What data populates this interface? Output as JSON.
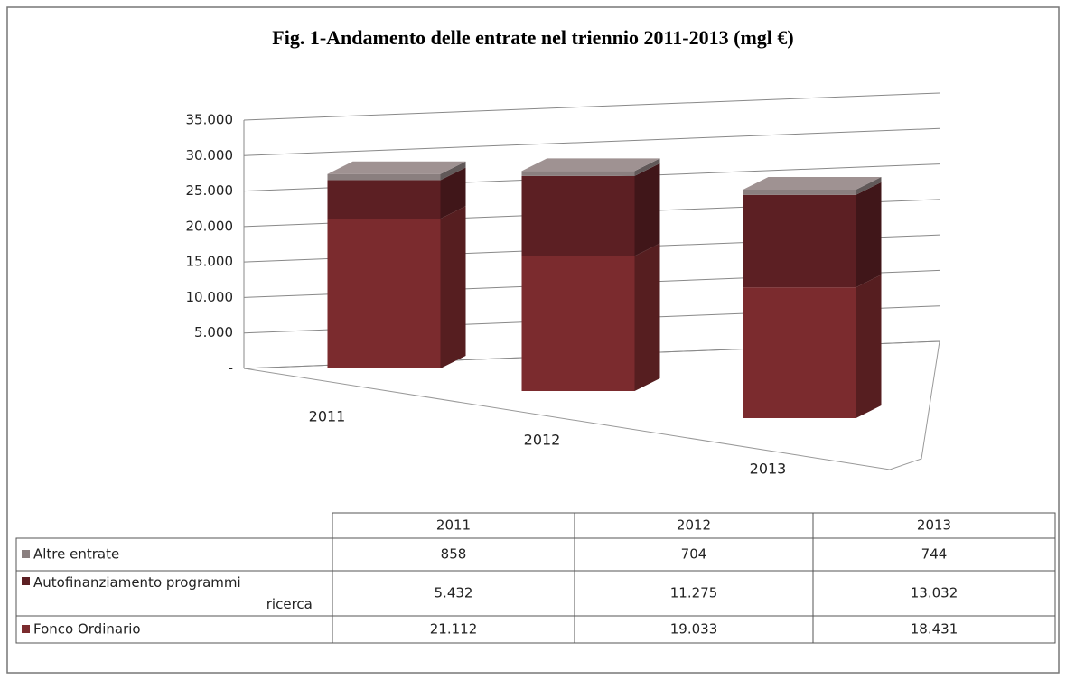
{
  "chart_data": {
    "type": "bar3d_stacked",
    "title": "Fig. 1-Andamento delle entrate nel triennio 2011-2013 (mgl €)",
    "categories": [
      "2011",
      "2012",
      "2013"
    ],
    "series": [
      {
        "name": "Fonco Ordinario",
        "color": "#7b2b2e",
        "values": [
          21112,
          19033,
          18431
        ],
        "value_labels": [
          "21.112",
          "19.033",
          "18.431"
        ]
      },
      {
        "name": "Autofinanziamento programmi ricerca",
        "color": "#5c1f23",
        "values": [
          5432,
          11275,
          13032
        ],
        "value_labels": [
          "5.432",
          "11.275",
          "13.032"
        ]
      },
      {
        "name": "Altre entrate",
        "color": "#8a7f7f",
        "values": [
          858,
          704,
          744
        ],
        "value_labels": [
          "858",
          "704",
          "744"
        ]
      }
    ],
    "ylim": [
      0,
      35000
    ],
    "yticks": [
      {
        "value": 0,
        "label": "-"
      },
      {
        "value": 5000,
        "label": "5.000"
      },
      {
        "value": 10000,
        "label": "10.000"
      },
      {
        "value": 15000,
        "label": "15.000"
      },
      {
        "value": 20000,
        "label": "20.000"
      },
      {
        "value": 25000,
        "label": "25.000"
      },
      {
        "value": 30000,
        "label": "30.000"
      },
      {
        "value": 35000,
        "label": "35.000"
      }
    ],
    "grid": true
  }
}
